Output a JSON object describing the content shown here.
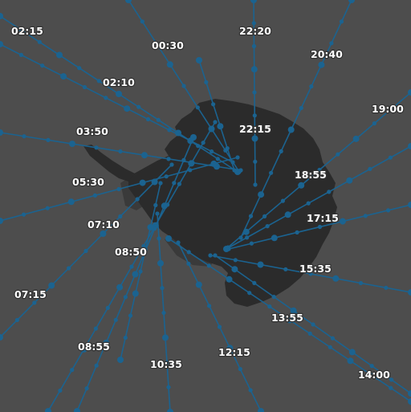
{
  "colors": {
    "ocean": "#4d4d4d",
    "land": "#2b2b2b",
    "ice_shelf": "#3a3a3a",
    "track": "#1b6390",
    "track_point": "#1b6390",
    "label_text": "#ffffff"
  },
  "legend": "none",
  "tracks": [
    {
      "time": "02:15"
    },
    {
      "time": "00:30"
    },
    {
      "time": "22:20"
    },
    {
      "time": "20:40"
    },
    {
      "time": "02:10"
    },
    {
      "time": "19:00"
    },
    {
      "time": "03:50"
    },
    {
      "time": "22:15"
    },
    {
      "time": "18:55"
    },
    {
      "time": "05:30"
    },
    {
      "time": "17:15"
    },
    {
      "time": "07:10"
    },
    {
      "time": "08:50"
    },
    {
      "time": "15:35"
    },
    {
      "time": "07:15"
    },
    {
      "time": "13:55"
    },
    {
      "time": "08:55"
    },
    {
      "time": "12:15"
    },
    {
      "time": "10:35"
    },
    {
      "time": "14:00"
    }
  ]
}
